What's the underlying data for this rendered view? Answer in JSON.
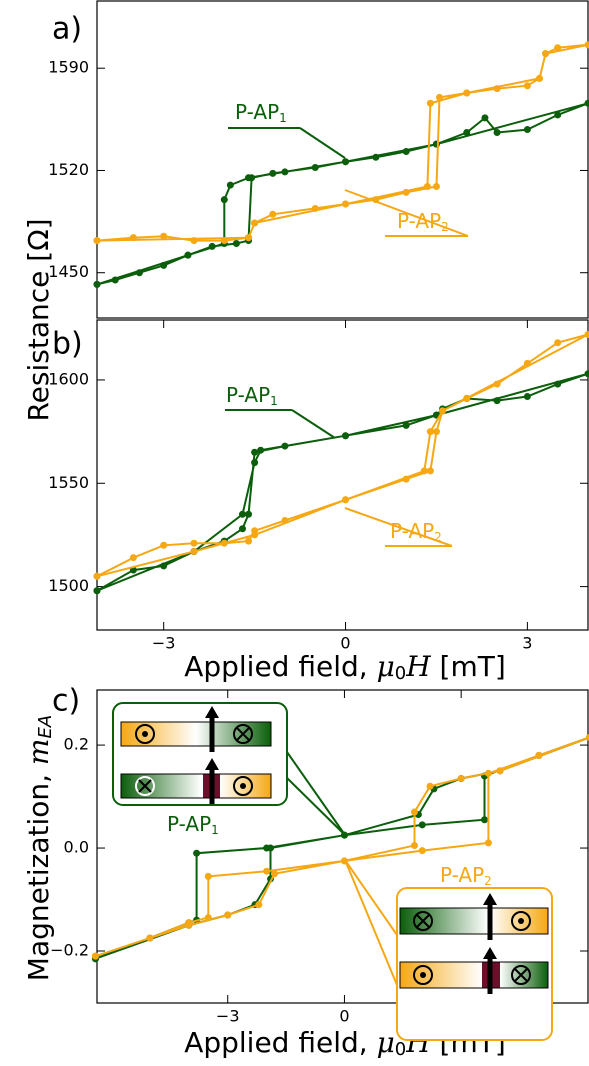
{
  "chart_data": [
    {
      "type": "line",
      "label": "a)",
      "xlim": [
        -4.1,
        4.0
      ],
      "ylim": [
        1419,
        1636
      ],
      "yticks": [
        1450,
        1520,
        1590
      ],
      "ylabel": "Resistance [Ω]",
      "annotations": [
        {
          "text": "P-AP",
          "sub": "1"
        },
        {
          "text": "P-AP",
          "sub": "2"
        }
      ],
      "series": [
        {
          "color": "#0b5e0b",
          "x": [
            -4.1,
            -3.8,
            -3.4,
            -3,
            -2.6,
            -2.2,
            -1.8,
            -1.6,
            -1.55,
            -1.2,
            -0.5,
            0,
            0.5,
            1,
            1.5,
            2,
            2.3,
            2.5,
            3,
            3.5,
            4,
            1.5,
            0,
            -1,
            -1.6,
            -1.9,
            -2.0,
            -2.0,
            -2.6,
            -4.1
          ],
          "values": [
            1442,
            1445,
            1450,
            1455,
            1462,
            1468,
            1470,
            1472,
            1515,
            1518,
            1522,
            1526,
            1529,
            1533,
            1538,
            1546,
            1556,
            1546,
            1548,
            1558,
            1566,
            1538,
            1526,
            1519,
            1515,
            1510,
            1500,
            1470,
            1462,
            1442
          ]
        },
        {
          "color": "#f5a814",
          "x": [
            -4.1,
            -3.5,
            -3,
            -2.5,
            -2,
            -1.6,
            -1.5,
            -1.2,
            -0.5,
            0,
            0.5,
            1,
            1.5,
            1.55,
            2,
            2.5,
            3,
            3.2,
            3.3,
            3.5,
            4,
            3.3,
            3.2,
            2,
            1.4,
            1.35,
            0,
            -1.5,
            -1.6,
            -4.1
          ],
          "values": [
            1472,
            1474,
            1475,
            1472,
            1472,
            1474,
            1484,
            1490,
            1494,
            1497,
            1500,
            1505,
            1509,
            1570,
            1573,
            1576,
            1578,
            1583,
            1600,
            1604,
            1606,
            1600,
            1583,
            1573,
            1566,
            1509,
            1497,
            1484,
            1474,
            1472
          ]
        }
      ]
    },
    {
      "type": "line",
      "label": "b)",
      "xlim": [
        -4.1,
        4.0
      ],
      "ylim": [
        1479,
        1629
      ],
      "yticks": [
        1500,
        1550,
        1600
      ],
      "xticks": [
        {
          "value": -3,
          "label": "−3"
        },
        0,
        3
      ],
      "xlabel": {
        "text": "Applied field, ",
        "symbol": "μ",
        "sub": "0",
        "symbol2": "H",
        "unit": " [mT]"
      },
      "annotations": [
        {
          "text": "P-AP",
          "sub": "1"
        },
        {
          "text": "P-AP",
          "sub": "2"
        }
      ],
      "series": [
        {
          "color": "#0b5e0b",
          "x": [
            -4.1,
            -3.5,
            -3,
            -2.5,
            -2,
            -1.7,
            -1.6,
            -1.5,
            -1,
            0,
            1,
            1.5,
            1.6,
            2,
            2.5,
            3,
            3.5,
            4,
            1.5,
            0,
            -1.4,
            -1.5,
            -1.7,
            -2.5,
            -4.1
          ],
          "values": [
            1498,
            1508,
            1510,
            1517,
            1522,
            1528,
            1535,
            1565,
            1568,
            1573,
            1578,
            1583,
            1586,
            1591,
            1590,
            1592,
            1598,
            1603,
            1583,
            1573,
            1566,
            1560,
            1535,
            1517,
            1498
          ]
        },
        {
          "color": "#f5a814",
          "x": [
            -4.1,
            -3.5,
            -3,
            -2.5,
            -2,
            -1.6,
            -1.5,
            -1,
            0,
            1,
            1.4,
            1.5,
            1.6,
            2,
            2.5,
            3,
            3.5,
            4,
            1.6,
            1.4,
            1.3,
            0,
            -1.5,
            -2.5,
            -4.1
          ],
          "values": [
            1505,
            1514,
            1520,
            1521,
            1521,
            1522,
            1527,
            1532,
            1542,
            1552,
            1556,
            1575,
            1585,
            1591,
            1598,
            1608,
            1618,
            1622,
            1585,
            1575,
            1556,
            1542,
            1525,
            1517,
            1505
          ]
        }
      ]
    },
    {
      "type": "line",
      "label": "c)",
      "xlim": [
        -6.36,
        6.26
      ],
      "ylim": [
        -0.301,
        0.307
      ],
      "yticks": [
        {
          "value": 0.2,
          "label": "0.2"
        },
        {
          "value": 0.0,
          "label": "0.0"
        },
        {
          "value": -0.2,
          "label": "−0.2"
        }
      ],
      "xticks": [
        {
          "value": -3,
          "label": "−3"
        },
        0,
        3
      ],
      "xlabel": {
        "text": "Applied field, ",
        "symbol": "μ",
        "sub": "0",
        "symbol2": "H",
        "unit": " [mT]"
      },
      "ylabel": {
        "text": "Magnetization, ",
        "symbol": "m",
        "sub": "EA"
      },
      "annotations": [
        {
          "text": "P-AP",
          "sub": "1"
        },
        {
          "text": "P-AP",
          "sub": "2"
        }
      ],
      "series": [
        {
          "color": "#0b5e0b",
          "x": [
            -6.4,
            -5,
            -4,
            -3.8,
            -3.8,
            -2,
            0,
            2,
            3.6,
            3.6,
            5,
            6.3,
            4,
            3,
            2.3,
            1.9,
            0,
            -1.9,
            -1.9,
            -2.3,
            -3,
            -4,
            -6.4
          ],
          "values": [
            -0.215,
            -0.175,
            -0.145,
            -0.14,
            -0.01,
            0.0,
            0.025,
            0.045,
            0.055,
            0.14,
            0.18,
            0.215,
            0.15,
            0.135,
            0.115,
            0.065,
            0.025,
            0.0,
            -0.06,
            -0.11,
            -0.13,
            -0.15,
            -0.215
          ]
        },
        {
          "color": "#f5a814",
          "x": [
            -6.4,
            -5,
            -4,
            -3.5,
            -3.5,
            -2,
            0,
            2,
            3.7,
            3.7,
            5,
            6.3,
            4,
            3,
            2.2,
            1.8,
            1.8,
            0,
            -1.8,
            -2.2,
            -3,
            -4,
            -6.4
          ],
          "values": [
            -0.21,
            -0.175,
            -0.145,
            -0.135,
            -0.055,
            -0.045,
            -0.025,
            -0.005,
            0.01,
            0.145,
            0.18,
            0.215,
            0.15,
            0.135,
            0.12,
            0.07,
            0.005,
            -0.025,
            -0.05,
            -0.11,
            -0.13,
            -0.15,
            -0.21
          ]
        }
      ]
    }
  ]
}
